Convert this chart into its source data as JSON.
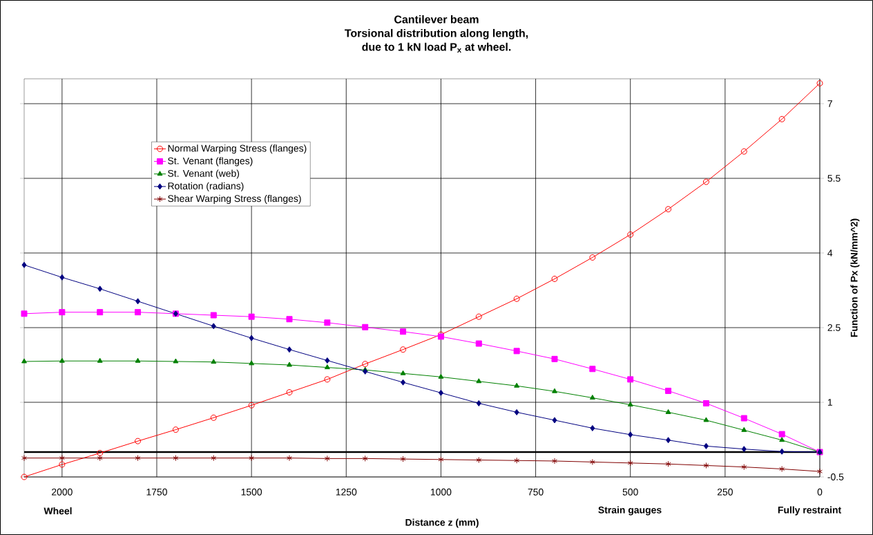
{
  "chart_data": {
    "type": "line",
    "title": "Cantilever beam\nTorsional distribution along length,\ndue to 1 kN load P$_{x}$ at wheel.",
    "xlabel": "Distance z (mm)",
    "ylabel": "Function of Px (kN/mm^2)",
    "x": [
      2100,
      2000,
      1900,
      1800,
      1700,
      1600,
      1500,
      1400,
      1300,
      1200,
      1100,
      1000,
      900,
      800,
      700,
      600,
      500,
      400,
      300,
      200,
      100,
      0
    ],
    "series": [
      {
        "name": "Normal Warping Stress (flanges)",
        "color": "#ff0000",
        "marker": "circle",
        "values": [
          -0.5,
          -0.25,
          -0.02,
          0.22,
          0.45,
          0.69,
          0.94,
          1.2,
          1.46,
          1.77,
          2.06,
          2.36,
          2.72,
          3.08,
          3.48,
          3.91,
          4.37,
          4.88,
          5.43,
          6.04,
          6.69,
          7.41
        ]
      },
      {
        "name": "St. Venant (flanges)",
        "color": "#ff00ff",
        "marker": "square",
        "values": [
          2.78,
          2.81,
          2.81,
          2.81,
          2.78,
          2.75,
          2.72,
          2.67,
          2.6,
          2.51,
          2.42,
          2.32,
          2.18,
          2.03,
          1.87,
          1.67,
          1.46,
          1.23,
          0.98,
          0.68,
          0.36,
          0.0
        ]
      },
      {
        "name": "St. Venant (web)",
        "color": "#008000",
        "marker": "triangle",
        "values": [
          1.82,
          1.83,
          1.83,
          1.83,
          1.82,
          1.81,
          1.78,
          1.75,
          1.7,
          1.65,
          1.58,
          1.51,
          1.42,
          1.33,
          1.22,
          1.09,
          0.95,
          0.8,
          0.64,
          0.44,
          0.24,
          0.0
        ]
      },
      {
        "name": "Rotation (radians)",
        "color": "#000080",
        "marker": "diamond",
        "values": [
          3.76,
          3.51,
          3.28,
          3.03,
          2.78,
          2.53,
          2.29,
          2.06,
          1.84,
          1.62,
          1.4,
          1.19,
          0.98,
          0.8,
          0.64,
          0.48,
          0.35,
          0.24,
          0.12,
          0.06,
          0.01,
          0.0
        ]
      },
      {
        "name": "Shear Warping Stress (flanges)",
        "color": "#800000",
        "marker": "cross",
        "values": [
          -0.12,
          -0.12,
          -0.12,
          -0.12,
          -0.12,
          -0.12,
          -0.12,
          -0.12,
          -0.13,
          -0.13,
          -0.14,
          -0.15,
          -0.16,
          -0.17,
          -0.18,
          -0.2,
          -0.22,
          -0.24,
          -0.27,
          -0.3,
          -0.34,
          -0.39
        ]
      }
    ],
    "xlim": [
      2100,
      0
    ],
    "xticks": [
      2000,
      1750,
      1500,
      1250,
      1000,
      750,
      500,
      250,
      0
    ],
    "ylim": [
      -0.5,
      7.5
    ],
    "yticks": [
      -0.5,
      1,
      2.5,
      4,
      5.5,
      7
    ],
    "ref_lines": [
      {
        "axis": "y",
        "value": 0,
        "color": "#000000"
      }
    ],
    "annotations": [
      "Wheel",
      "Strain gauges",
      "Fully restraint"
    ],
    "grid": true,
    "legend": "top left",
    "line_style": "solid"
  }
}
